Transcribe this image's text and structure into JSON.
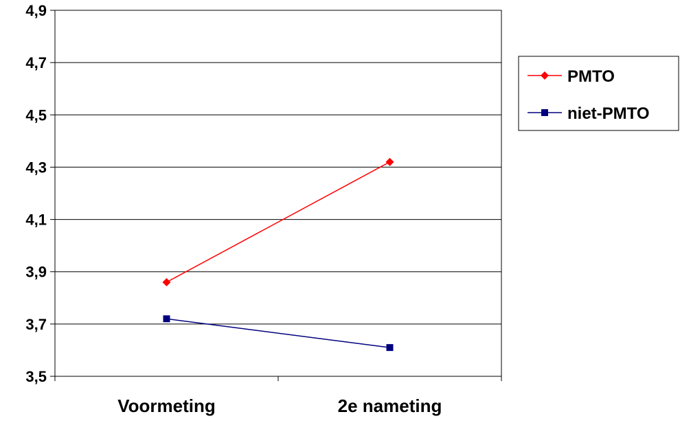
{
  "chart_data": {
    "type": "line",
    "categories": [
      "Voormeting",
      "2e nameting"
    ],
    "series": [
      {
        "name": "PMTO",
        "values": [
          3.86,
          4.32
        ],
        "color": "#ff0000",
        "marker": "diamond"
      },
      {
        "name": "niet-PMTO",
        "values": [
          3.72,
          3.61
        ],
        "color": "#00007f",
        "marker": "square"
      }
    ],
    "title": "",
    "xlabel": "",
    "ylabel": "",
    "ylim": [
      3.5,
      4.9
    ],
    "yticks": [
      "3,5",
      "3,7",
      "3,9",
      "4,1",
      "4,3",
      "4,5",
      "4,7",
      "4,9"
    ],
    "grid": true,
    "legend": "right"
  }
}
